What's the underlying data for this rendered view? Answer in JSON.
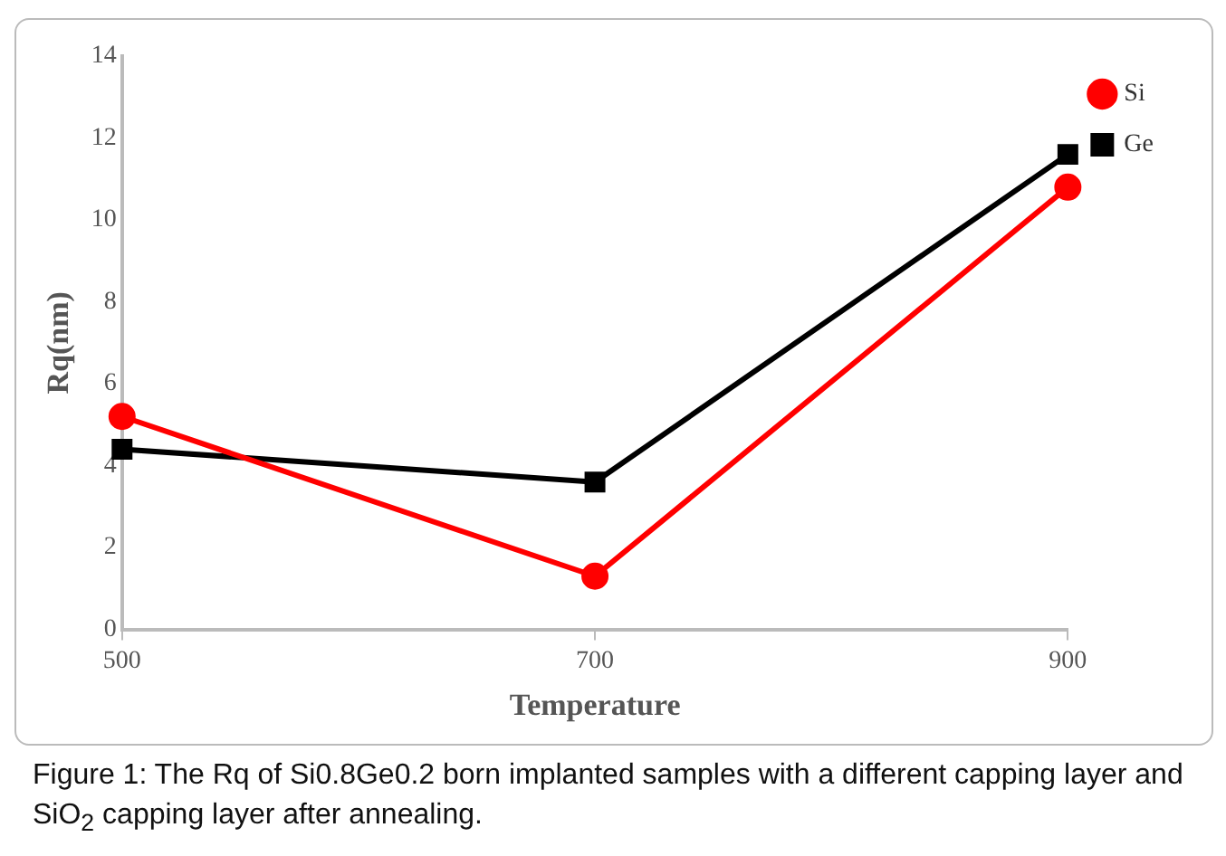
{
  "chart_data": {
    "type": "line",
    "xlabel": "Temperature",
    "ylabel": "Rq(nm)",
    "x": [
      500,
      700,
      900
    ],
    "series": [
      {
        "name": "Si",
        "color": "#ff0000",
        "marker": "circle",
        "values": [
          5.2,
          1.3,
          10.8
        ]
      },
      {
        "name": "Ge",
        "color": "#000000",
        "marker": "square",
        "values": [
          4.4,
          3.6,
          11.6
        ]
      }
    ],
    "xlim": [
      500,
      900
    ],
    "xticks": [
      500,
      700,
      900
    ],
    "ylim": [
      0,
      14
    ],
    "yticks": [
      0,
      2,
      4,
      6,
      8,
      10,
      12,
      14
    ],
    "grid": false,
    "legend": "top right",
    "line_style": "solid",
    "annotations": [
      "Figure 1: The Rq of Si0.8Ge0.2 born implanted samples with a different capping layer and SiO$_{2}$ capping layer after annealing."
    ]
  }
}
